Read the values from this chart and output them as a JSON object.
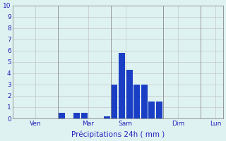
{
  "title": "",
  "xlabel": "Précipitations 24h ( mm )",
  "ylabel": "",
  "background_color": "#dff2f2",
  "bar_color": "#1a3fc4",
  "grid_color": "#b0b0b0",
  "ylim": [
    0,
    10
  ],
  "yticks": [
    0,
    1,
    2,
    3,
    4,
    5,
    6,
    7,
    8,
    9,
    10
  ],
  "day_labels": [
    "Ven",
    "Mar",
    "Sam",
    "Dim",
    "Lun"
  ],
  "num_bars": 28,
  "bar_values": [
    0,
    0,
    0,
    0,
    0,
    0,
    0.5,
    0,
    0.5,
    0.5,
    0,
    0,
    0.2,
    3.0,
    5.8,
    4.3,
    3.0,
    3.0,
    1.5,
    1.5,
    0,
    0,
    0,
    0,
    0,
    0,
    0,
    0
  ],
  "bar_width": 0.85,
  "xlim": [
    -0.5,
    27.5
  ],
  "day_tick_positions": [
    2.5,
    9.5,
    14.5,
    21.5,
    26.5
  ],
  "vline_positions": [
    5.5,
    12.5,
    19.5,
    24.5
  ]
}
